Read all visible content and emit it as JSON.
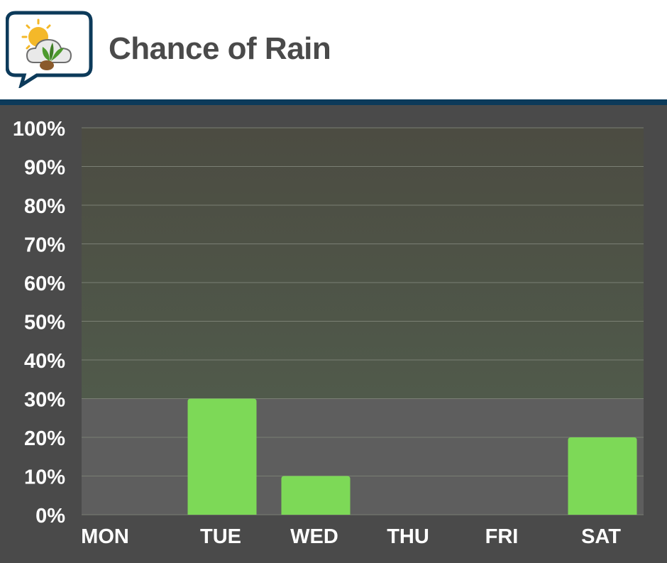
{
  "header": {
    "title": "Chance of Rain"
  },
  "logo": {
    "icon": "weather-plant-chat-icon"
  },
  "colors": {
    "bar": "#7dd957",
    "header_rule": "#0c3a5a",
    "title": "#4a4a4a",
    "plot_bg": "#5e5e5e",
    "band_bg": "#4f564a",
    "text": "#ffffff"
  },
  "chart_data": {
    "type": "bar",
    "categories": [
      "MON",
      "TUE",
      "WED",
      "THU",
      "FRI",
      "SAT"
    ],
    "values": [
      0,
      30,
      10,
      0,
      0,
      20
    ],
    "ylim": [
      0,
      100
    ],
    "yticks": [
      "0%",
      "10%",
      "20%",
      "30%",
      "40%",
      "50%",
      "60%",
      "70%",
      "80%",
      "90%",
      "100%"
    ],
    "grid": true,
    "shaded_band": [
      30,
      100
    ]
  }
}
